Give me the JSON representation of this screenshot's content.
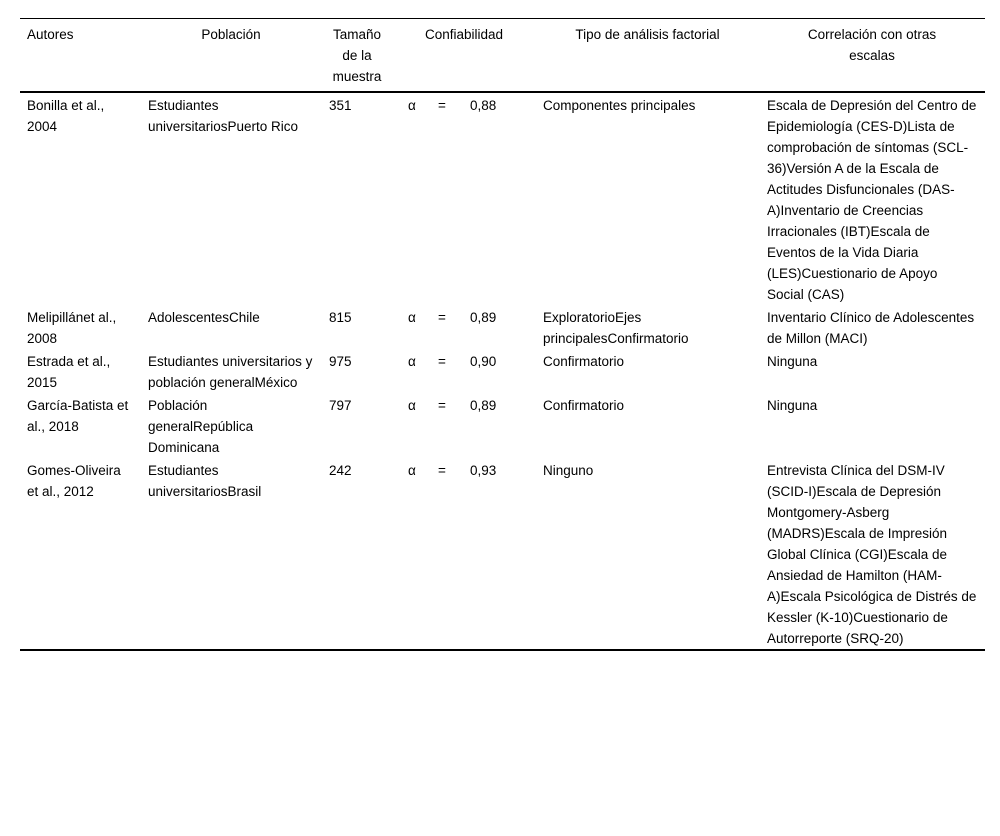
{
  "table": {
    "columns": [
      {
        "label": "Autores"
      },
      {
        "label": "Población"
      },
      {
        "label": "Tamaño de la muestra"
      },
      {
        "label": "Confiabilidad"
      },
      {
        "label": "Tipo de análisis factorial"
      },
      {
        "label": "Correlación con otras escalas"
      }
    ],
    "rows": [
      {
        "autores": "Bonilla et al., 2004",
        "poblacion": "Estudiantes universitariosPuerto Rico",
        "tamano": "351",
        "alpha": "α",
        "equals": "=",
        "confiabilidad": "0,88",
        "tipo": "Componentes principales",
        "correlacion": "Escala de Depresión del Centro de Epidemiología (CES-D)Lista de comprobación de síntomas (SCL-36)Versión A de la Escala de Actitudes Disfuncionales (DAS-A)Inventario de Creencias Irracionales (IBT)Escala de Eventos de la Vida Diaria (LES)Cuestionario de Apoyo Social (CAS)"
      },
      {
        "autores": "Melipillánet al., 2008",
        "poblacion": "AdolescentesChile",
        "tamano": "815",
        "alpha": "α",
        "equals": "=",
        "confiabilidad": "0,89",
        "tipo": "ExploratorioEjes principalesConfirmatorio",
        "correlacion": "Inventario Clínico de Adolescentes de Millon (MACI)"
      },
      {
        "autores": "Estrada et al., 2015",
        "poblacion": "Estudiantes universitarios y población generalMéxico",
        "tamano": "975",
        "alpha": "α",
        "equals": "=",
        "confiabilidad": "0,90",
        "tipo": "Confirmatorio",
        "correlacion": "Ninguna"
      },
      {
        "autores": "García-Batista et al., 2018",
        "poblacion": "Población generalRepública Dominicana",
        "tamano": "797",
        "alpha": "α",
        "equals": "=",
        "confiabilidad": "0,89",
        "tipo": "Confirmatorio",
        "correlacion": "Ninguna"
      },
      {
        "autores": "Gomes-Oliveira et al., 2012",
        "poblacion": "Estudiantes universitariosBrasil",
        "tamano": "242",
        "alpha": "α",
        "equals": "=",
        "confiabilidad": "0,93",
        "tipo": "Ninguno",
        "correlacion": "Entrevista Clínica del DSM-IV (SCID-I)Escala de Depresión Montgomery-Asberg (MADRS)Escala de Impresión Global Clínica (CGI)Escala de Ansiedad de Hamilton (HAM-A)Escala Psicológica de Distrés de Kessler (K-10)Cuestionario de Autorreporte (SRQ-20)"
      }
    ]
  }
}
